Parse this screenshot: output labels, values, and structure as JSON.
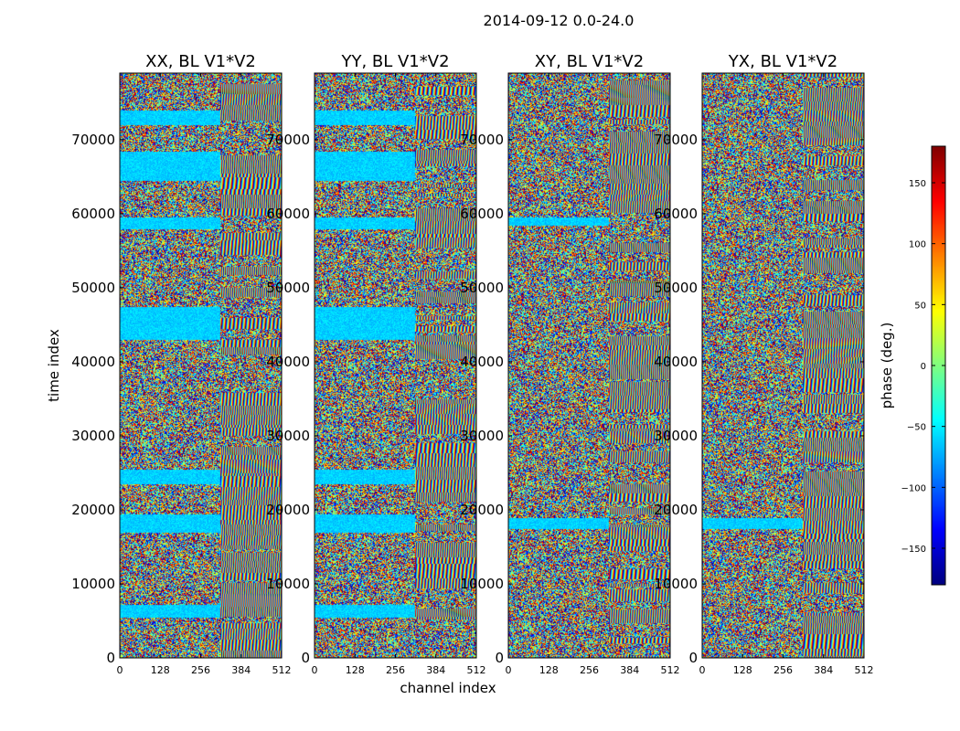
{
  "figure": {
    "suptitle": "2014-09-12 0.0-24.0",
    "ylabel": "time index",
    "xlabel": "channel index",
    "colorbar_label": "phase (deg.)"
  },
  "colorbar": {
    "colormap": "jet",
    "range": [
      -180,
      180
    ],
    "ticks": [
      150,
      100,
      50,
      0,
      -50,
      -100,
      -150
    ],
    "tick_labels": [
      "150",
      "100",
      "50",
      "0",
      "−50",
      "−100",
      "−150"
    ]
  },
  "chart_data": [
    {
      "type": "heatmap",
      "title": "XX, BL V1*V2",
      "xlabel": "channel index",
      "ylabel": "time index",
      "xlim": [
        0,
        512
      ],
      "ylim": [
        0,
        79000
      ],
      "xticks": [
        0,
        128,
        256,
        384,
        512
      ],
      "yticks": [
        0,
        10000,
        20000,
        30000,
        40000,
        50000,
        60000,
        70000
      ],
      "value_range_deg": [
        -180,
        180
      ],
      "coherent_bands_time": [
        [
          5500,
          7200
        ],
        [
          17000,
          19500
        ],
        [
          23500,
          25500
        ],
        [
          43000,
          47500
        ],
        [
          58000,
          59500
        ],
        [
          64500,
          68500
        ],
        [
          72000,
          74000
        ]
      ]
    },
    {
      "type": "heatmap",
      "title": "YY, BL V1*V2",
      "xlim": [
        0,
        512
      ],
      "ylim": [
        0,
        79000
      ],
      "xticks": [
        0,
        128,
        256,
        384,
        512
      ],
      "yticks": [
        0,
        10000,
        20000,
        30000,
        40000,
        50000,
        60000,
        70000
      ],
      "value_range_deg": [
        -180,
        180
      ],
      "coherent_bands_time": [
        [
          5500,
          7200
        ],
        [
          17000,
          19500
        ],
        [
          23500,
          25500
        ],
        [
          43000,
          47500
        ],
        [
          58000,
          59500
        ],
        [
          64500,
          68500
        ],
        [
          72000,
          74000
        ]
      ]
    },
    {
      "type": "heatmap",
      "title": "XY, BL V1*V2",
      "xlim": [
        0,
        512
      ],
      "ylim": [
        0,
        79000
      ],
      "xticks": [
        0,
        128,
        256,
        384,
        512
      ],
      "yticks": [
        0,
        10000,
        20000,
        30000,
        40000,
        50000,
        60000,
        70000
      ],
      "value_range_deg": [
        -180,
        180
      ],
      "coherent_bands_time": [
        [
          17500,
          19000
        ],
        [
          58500,
          59500
        ]
      ]
    },
    {
      "type": "heatmap",
      "title": "YX, BL V1*V2",
      "xlim": [
        0,
        512
      ],
      "ylim": [
        0,
        79000
      ],
      "xticks": [
        0,
        128,
        256,
        384,
        512
      ],
      "yticks": [
        0,
        10000,
        20000,
        30000,
        40000,
        50000,
        60000,
        70000
      ],
      "value_range_deg": [
        -180,
        180
      ],
      "coherent_bands_time": [
        [
          17500,
          19000
        ]
      ]
    }
  ]
}
